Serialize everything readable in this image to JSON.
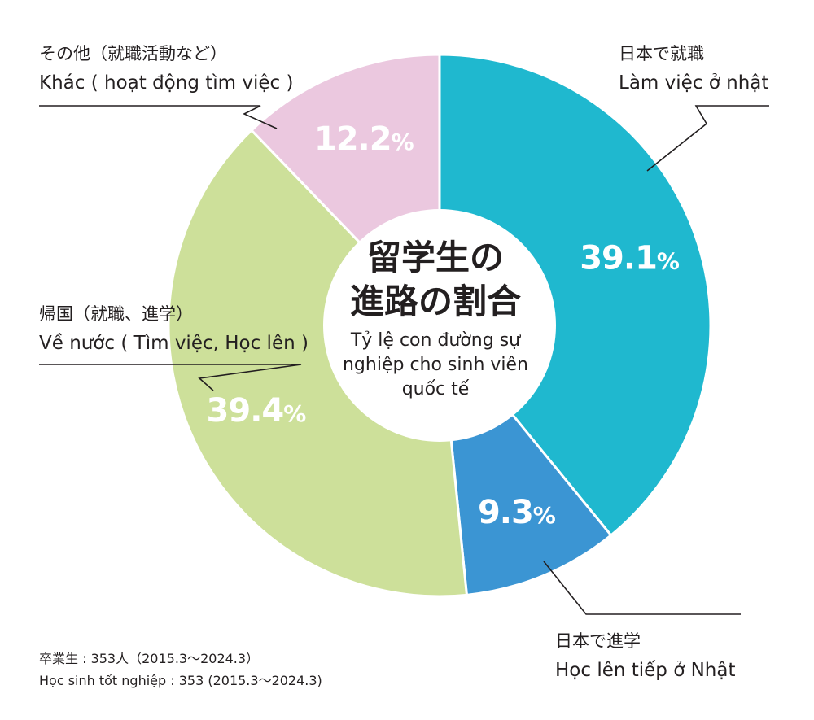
{
  "center_title": {
    "japanese": "留学生の\n進路の割合",
    "vietnamese": "Tỷ lệ con đường sự\nnghiệp cho sinh viên\nquốc tế"
  },
  "chart_data": {
    "type": "pie",
    "categories": [
      "日本で就職 / Làm việc ở nhật",
      "日本で進学 / Học lên tiếp ở Nhật",
      "帰国（就職、進学） / Về nước ( Tìm việc, Học lên )",
      "その他（就職活動など） / Khác ( hoạt động tìm việc )"
    ],
    "values": [
      39.1,
      9.3,
      39.4,
      12.2
    ],
    "unit": "%",
    "colors": [
      "#1fb8cf",
      "#3b95d3",
      "#cde09a",
      "#ebc8df"
    ]
  },
  "labels": {
    "work_japan": {
      "ja": "日本で就職",
      "vi": "Làm việc ở nhật"
    },
    "study_japan": {
      "ja": "日本で進学",
      "vi": "Học lên tiếp ở Nhật"
    },
    "return_home": {
      "ja": "帰国（就職、進学）",
      "vi": "Về nước ( Tìm việc, Học lên )"
    },
    "others": {
      "ja": "その他（就職活動など）",
      "vi": "Khác ( hoạt động tìm việc )"
    }
  },
  "footnote": {
    "line1": "卒業生 : 353人（2015.3〜2024.3）",
    "line2": "Học sinh tốt nghiệp : 353 (2015.3〜2024.3)"
  }
}
